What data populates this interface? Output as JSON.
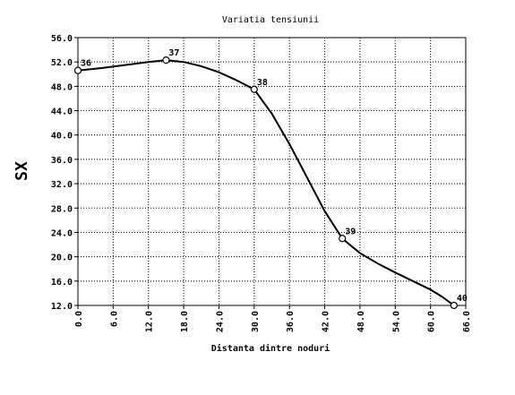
{
  "chart_data": {
    "type": "line",
    "title": "Variatia tensiunii",
    "xlabel": "Distanta dintre noduri",
    "ylabel": "SX",
    "xlim": [
      0,
      66
    ],
    "ylim": [
      12,
      56
    ],
    "x_ticks": [
      "0.0",
      "6.0",
      "12.0",
      "18.0",
      "24.0",
      "30.0",
      "36.0",
      "42.0",
      "48.0",
      "54.0",
      "60.0",
      "66.0"
    ],
    "y_ticks": [
      "12.0",
      "16.0",
      "20.0",
      "24.0",
      "28.0",
      "32.0",
      "36.0",
      "40.0",
      "44.0",
      "48.0",
      "52.0",
      "56.0"
    ],
    "grid": true,
    "line_color": "#000000",
    "points": [
      {
        "label": "36",
        "x": 0.0,
        "y": 50.6
      },
      {
        "label": "37",
        "x": 15.0,
        "y": 52.3
      },
      {
        "label": "38",
        "x": 30.0,
        "y": 47.5
      },
      {
        "label": "39",
        "x": 45.0,
        "y": 23.0
      },
      {
        "label": "40",
        "x": 64.0,
        "y": 12.0
      }
    ],
    "curve": [
      [
        0,
        50.6
      ],
      [
        4,
        51.0
      ],
      [
        8,
        51.5
      ],
      [
        12,
        52.0
      ],
      [
        15,
        52.3
      ],
      [
        18,
        52.0
      ],
      [
        21,
        51.3
      ],
      [
        24,
        50.3
      ],
      [
        27,
        49.0
      ],
      [
        30,
        47.5
      ],
      [
        33,
        43.5
      ],
      [
        36,
        38.5
      ],
      [
        39,
        33.0
      ],
      [
        42,
        27.5
      ],
      [
        45,
        23.0
      ],
      [
        48,
        20.6
      ],
      [
        51,
        18.9
      ],
      [
        54,
        17.4
      ],
      [
        57,
        16.0
      ],
      [
        60,
        14.6
      ],
      [
        62,
        13.4
      ],
      [
        64,
        12.0
      ]
    ]
  }
}
